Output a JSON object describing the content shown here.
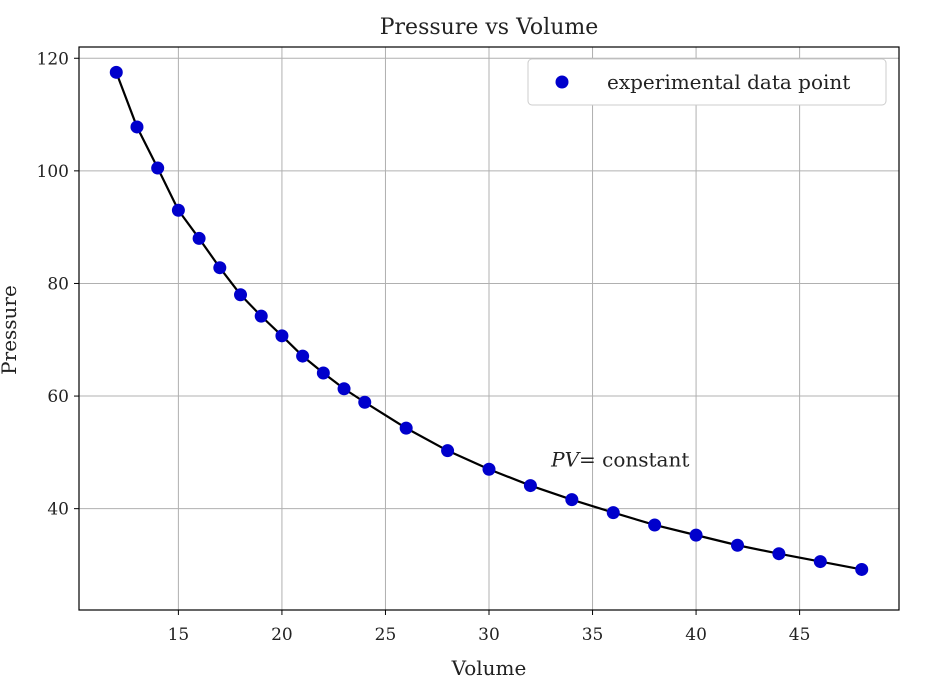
{
  "chart_data": {
    "type": "scatter",
    "title": "Pressure vs Volume",
    "xlabel": "Volume",
    "ylabel": "Pressure",
    "xlim": [
      10.2,
      49.8
    ],
    "ylim": [
      22,
      122
    ],
    "x_ticks": [
      15,
      20,
      25,
      30,
      35,
      40,
      45
    ],
    "y_ticks": [
      40,
      60,
      80,
      100,
      120
    ],
    "grid": true,
    "legend_position": "top-right",
    "series": [
      {
        "name": "experimental data point",
        "kind": "scatter",
        "color": "#0000cc",
        "x": [
          12,
          13,
          14,
          15,
          16,
          17,
          18,
          19,
          20,
          21,
          22,
          23,
          24,
          26,
          28,
          30,
          32,
          34,
          36,
          38,
          40,
          42,
          44,
          46,
          48
        ],
        "y": [
          117.5,
          107.8,
          100.5,
          93.0,
          88.0,
          82.8,
          78.0,
          74.2,
          70.7,
          67.1,
          64.1,
          61.3,
          58.9,
          54.3,
          50.3,
          47.0,
          44.1,
          41.6,
          39.3,
          37.1,
          35.3,
          33.5,
          32.0,
          30.6,
          29.2
        ]
      },
      {
        "kind": "line",
        "color": "#000000",
        "x": [
          12,
          13,
          14,
          15,
          16,
          17,
          18,
          19,
          20,
          21,
          22,
          23,
          24,
          26,
          28,
          30,
          32,
          34,
          36,
          38,
          40,
          42,
          44,
          46,
          48
        ],
        "y": [
          117.5,
          107.8,
          100.5,
          93.0,
          88.0,
          82.8,
          78.0,
          74.2,
          70.7,
          67.1,
          64.1,
          61.3,
          58.9,
          54.3,
          50.3,
          47.0,
          44.1,
          41.6,
          39.3,
          37.1,
          35.3,
          33.5,
          32.0,
          30.6,
          29.2
        ]
      }
    ],
    "annotations": [
      {
        "text_italic": "PV",
        "text": "= constant",
        "x": 33,
        "y": 47.5
      }
    ]
  }
}
